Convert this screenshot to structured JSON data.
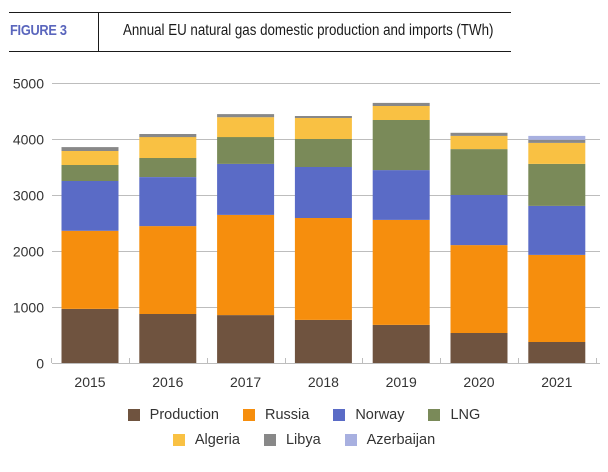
{
  "header": {
    "figure_label": "FIGURE 3",
    "title": "Annual EU natural gas domestic production and imports (TWh)"
  },
  "legend": {
    "row1": [
      {
        "name": "Production",
        "color": "#6f533f"
      },
      {
        "name": "Russia",
        "color": "#f68e0d"
      },
      {
        "name": "Norway",
        "color": "#5a6bc6"
      },
      {
        "name": "LNG",
        "color": "#7a8a59"
      }
    ],
    "row2": [
      {
        "name": "Algeria",
        "color": "#f9c143"
      },
      {
        "name": "Libya",
        "color": "#888888"
      },
      {
        "name": "Azerbaijan",
        "color": "#a8b0e0"
      }
    ]
  },
  "chart_data": {
    "type": "bar",
    "stacked": true,
    "title": "Annual EU natural gas domestic production and imports (TWh)",
    "xlabel": "",
    "ylabel": "",
    "ylim": [
      0,
      5000
    ],
    "yticks": [
      0,
      1000,
      2000,
      3000,
      4000,
      5000
    ],
    "grid": true,
    "legend_position": "bottom",
    "categories": [
      "2015",
      "2016",
      "2017",
      "2018",
      "2019",
      "2020",
      "2021"
    ],
    "series": [
      {
        "name": "Production",
        "color": "#6f533f",
        "values": [
          965,
          875,
          855,
          770,
          680,
          535,
          375
        ]
      },
      {
        "name": "Russia",
        "color": "#f68e0d",
        "values": [
          1395,
          1570,
          1790,
          1820,
          1875,
          1570,
          1555
        ]
      },
      {
        "name": "Norway",
        "color": "#5a6bc6",
        "values": [
          890,
          875,
          910,
          910,
          890,
          895,
          875
        ]
      },
      {
        "name": "LNG",
        "color": "#7a8a59",
        "values": [
          285,
          340,
          480,
          500,
          895,
          820,
          750
        ]
      },
      {
        "name": "Algeria",
        "color": "#f9c143",
        "values": [
          250,
          375,
          355,
          375,
          250,
          235,
          375
        ]
      },
      {
        "name": "Libya",
        "color": "#888888",
        "values": [
          70,
          55,
          55,
          35,
          55,
          55,
          55
        ]
      },
      {
        "name": "Azerbaijan",
        "color": "#a8b0e0",
        "values": [
          0,
          0,
          0,
          0,
          0,
          0,
          70
        ]
      }
    ]
  }
}
